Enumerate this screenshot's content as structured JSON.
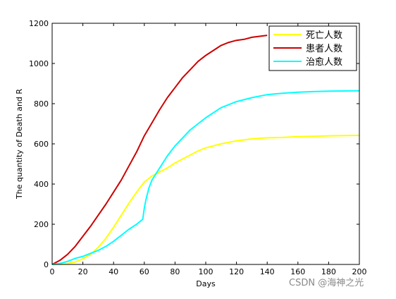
{
  "chart_data": {
    "type": "line",
    "xlabel": "Days",
    "ylabel": "The quantity of Death and R",
    "xlim": [
      0,
      200
    ],
    "ylim": [
      0,
      1200
    ],
    "xticks": [
      "0",
      "20",
      "40",
      "60",
      "80",
      "100",
      "120",
      "140",
      "160",
      "180",
      "200"
    ],
    "yticks": [
      "0",
      "200",
      "400",
      "600",
      "800",
      "1000",
      "1200"
    ],
    "grid": false,
    "legend_position": "top-right",
    "series": [
      {
        "name": "死亡人数",
        "color": "#ffff00",
        "x": [
          0,
          5,
          10,
          15,
          20,
          25,
          30,
          35,
          40,
          45,
          50,
          55,
          60,
          65,
          70,
          75,
          80,
          85,
          90,
          95,
          100,
          110,
          120,
          130,
          140,
          150,
          160,
          170,
          180,
          190,
          200
        ],
        "y": [
          0,
          2,
          5,
          12,
          28,
          50,
          85,
          130,
          185,
          245,
          305,
          360,
          410,
          440,
          460,
          480,
          505,
          525,
          545,
          565,
          580,
          600,
          615,
          625,
          630,
          632,
          636,
          638,
          640,
          641,
          642
        ]
      },
      {
        "name": "患者人数",
        "color": "#cc0000",
        "x": [
          0,
          5,
          10,
          15,
          20,
          25,
          30,
          35,
          40,
          45,
          50,
          55,
          60,
          65,
          70,
          75,
          80,
          85,
          90,
          95,
          100,
          105,
          110,
          115,
          120,
          125,
          130,
          135,
          140
        ],
        "y": [
          0,
          20,
          50,
          90,
          140,
          190,
          245,
          300,
          360,
          420,
          490,
          560,
          640,
          705,
          770,
          830,
          880,
          930,
          970,
          1010,
          1040,
          1065,
          1090,
          1105,
          1115,
          1120,
          1130,
          1135,
          1140
        ]
      },
      {
        "name": "治愈人数",
        "color": "#00ffff",
        "x": [
          0,
          5,
          10,
          15,
          20,
          25,
          30,
          35,
          40,
          45,
          50,
          55,
          59,
          60,
          61,
          63,
          65,
          70,
          75,
          80,
          85,
          90,
          95,
          100,
          110,
          120,
          130,
          140,
          150,
          160,
          170,
          180,
          190,
          200
        ],
        "y": [
          0,
          5,
          15,
          30,
          40,
          55,
          70,
          90,
          115,
          145,
          175,
          200,
          225,
          280,
          320,
          380,
          420,
          480,
          540,
          590,
          630,
          670,
          700,
          730,
          780,
          810,
          830,
          845,
          852,
          857,
          860,
          862,
          863,
          864
        ]
      }
    ]
  },
  "watermark": "CSDN @海神之光"
}
